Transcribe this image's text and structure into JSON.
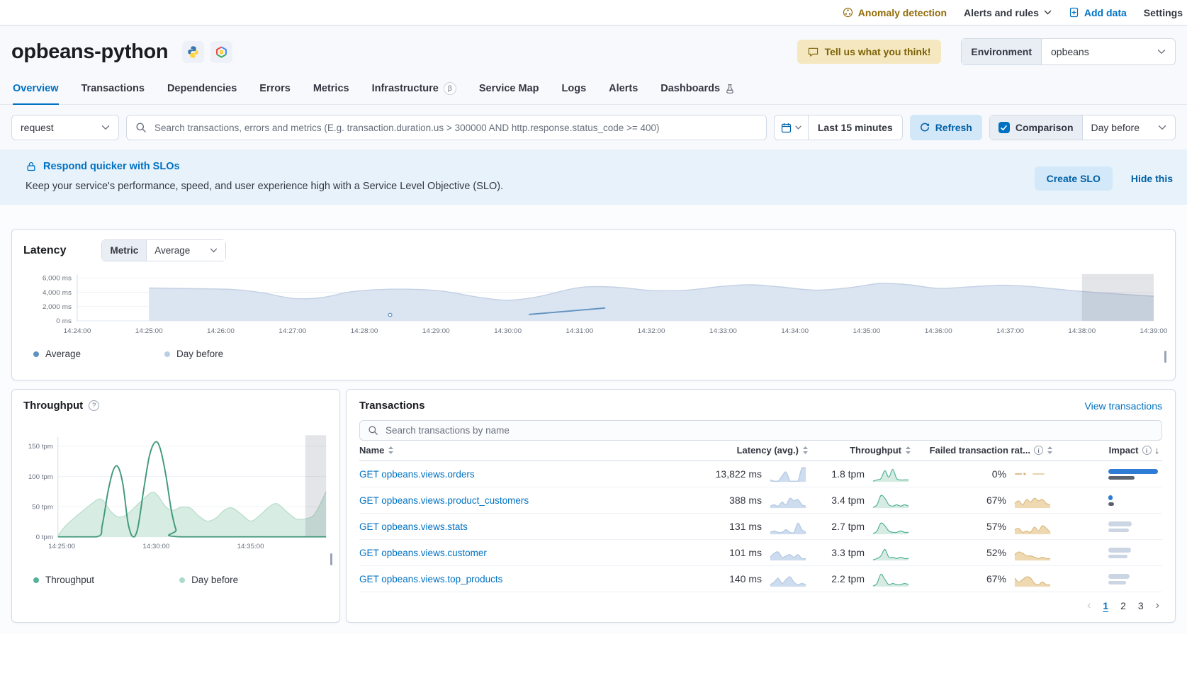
{
  "topbar": {
    "anomaly_detection": "Anomaly detection",
    "alerts_and_rules": "Alerts and rules",
    "add_data": "Add data",
    "settings": "Settings"
  },
  "header": {
    "service_name": "opbeans-python",
    "feedback_button": "Tell us what you think!",
    "environment_label": "Environment",
    "environment_value": "opbeans",
    "agent_icons": [
      "python",
      "google-cloud"
    ]
  },
  "tabs": [
    {
      "label": "Overview",
      "active": true
    },
    {
      "label": "Transactions"
    },
    {
      "label": "Dependencies"
    },
    {
      "label": "Errors"
    },
    {
      "label": "Metrics"
    },
    {
      "label": "Infrastructure",
      "badge": "β"
    },
    {
      "label": "Service Map"
    },
    {
      "label": "Logs"
    },
    {
      "label": "Alerts"
    },
    {
      "label": "Dashboards",
      "icon": "beaker"
    }
  ],
  "searchbar": {
    "transaction_type": "request",
    "search_placeholder": "Search transactions, errors and metrics (E.g. transaction.duration.us > 300000 AND http.response.status_code >= 400)",
    "time_range": "Last 15 minutes",
    "refresh_label": "Refresh",
    "comparison_label": "Comparison",
    "comparison_checked": true,
    "comparison_value": "Day before"
  },
  "slo_banner": {
    "title": "Respond quicker with SLOs",
    "description": "Keep your service's performance, speed, and user experience high with a Service Level Objective (SLO).",
    "create_button": "Create SLO",
    "hide_link": "Hide this"
  },
  "latency_panel": {
    "title": "Latency",
    "metric_label": "Metric",
    "metric_value": "Average",
    "legend": [
      {
        "label": "Average",
        "color": "#6092c0"
      },
      {
        "label": "Day before",
        "color": "#b9cfe8"
      }
    ]
  },
  "throughput_panel": {
    "title": "Throughput",
    "legend": [
      {
        "label": "Throughput",
        "color": "#54b399"
      },
      {
        "label": "Day before",
        "color": "#aadbc8"
      }
    ]
  },
  "transactions_panel": {
    "title": "Transactions",
    "view_link": "View transactions",
    "search_placeholder": "Search transactions by name",
    "columns": [
      "Name",
      "Latency (avg.)",
      "Throughput",
      "Failed transaction rat...",
      "Impact"
    ],
    "rows": [
      {
        "name": "GET opbeans.views.orders",
        "latency": "13,822 ms",
        "latency_spark": [
          1,
          0,
          0,
          4,
          7,
          0,
          0,
          0,
          10,
          10
        ],
        "throughput": "1.8 tpm",
        "throughput_spark": [
          0,
          1,
          2,
          8,
          3,
          9,
          2,
          1,
          1,
          1
        ],
        "failed_rate": "0%",
        "failed_spark": [
          0,
          0,
          0,
          0,
          0,
          0,
          0,
          0,
          0,
          0
        ],
        "impact": [
          {
            "w": 97,
            "color": "#2f7cd6"
          },
          {
            "w": 52,
            "color": "#5a626e"
          }
        ]
      },
      {
        "name": "GET opbeans.views.product_customers",
        "latency": "388 ms",
        "latency_spark": [
          1,
          2,
          1,
          4,
          2,
          7,
          5,
          6,
          2,
          1
        ],
        "throughput": "3.4 tpm",
        "throughput_spark": [
          0,
          2,
          9,
          7,
          2,
          1,
          2,
          1,
          2,
          1
        ],
        "failed_rate": "67%",
        "failed_spark": [
          3,
          5,
          2,
          6,
          4,
          7,
          5,
          6,
          3,
          2
        ],
        "impact": [
          {
            "w": 8,
            "color": "#2f7cd6"
          },
          {
            "w": 11,
            "color": "#5a626e"
          }
        ]
      },
      {
        "name": "GET opbeans.views.stats",
        "latency": "131 ms",
        "latency_spark": [
          1,
          2,
          1,
          1,
          3,
          1,
          1,
          8,
          3,
          1
        ],
        "throughput": "2.7 tpm",
        "throughput_spark": [
          0,
          2,
          8,
          6,
          2,
          1,
          1,
          2,
          1,
          1
        ],
        "failed_rate": "57%",
        "failed_spark": [
          3,
          4,
          1,
          2,
          1,
          5,
          2,
          6,
          4,
          1
        ],
        "impact": [
          {
            "w": 46,
            "color": "#cbd5e3"
          },
          {
            "w": 40,
            "color": "#cbd5e3"
          }
        ]
      },
      {
        "name": "GET opbeans.views.customer",
        "latency": "101 ms",
        "latency_spark": [
          2,
          5,
          6,
          2,
          3,
          4,
          2,
          4,
          1,
          1
        ],
        "throughput": "3.3 tpm",
        "throughput_spark": [
          0,
          1,
          3,
          8,
          2,
          2,
          1,
          2,
          1,
          1
        ],
        "failed_rate": "52%",
        "failed_spark": [
          4,
          6,
          5,
          3,
          3,
          2,
          1,
          2,
          1,
          1
        ],
        "impact": [
          {
            "w": 45,
            "color": "#cbd5e3"
          },
          {
            "w": 38,
            "color": "#cbd5e3"
          }
        ]
      },
      {
        "name": "GET opbeans.views.top_products",
        "latency": "140 ms",
        "latency_spark": [
          1,
          3,
          6,
          2,
          5,
          7,
          3,
          1,
          2,
          1
        ],
        "throughput": "2.2 tpm",
        "throughput_spark": [
          0,
          2,
          9,
          5,
          1,
          2,
          1,
          1,
          2,
          1
        ],
        "failed_rate": "67%",
        "failed_spark": [
          6,
          3,
          5,
          7,
          6,
          2,
          1,
          3,
          1,
          1
        ],
        "impact": [
          {
            "w": 42,
            "color": "#cbd5e3"
          },
          {
            "w": 35,
            "color": "#cbd5e3"
          }
        ]
      }
    ],
    "pagination": {
      "prev": "‹",
      "pages": [
        "1",
        "2",
        "3"
      ],
      "active_page": "1",
      "next": "›"
    }
  },
  "chart_data": [
    {
      "type": "area",
      "title": "Latency",
      "unit": "ms",
      "ylim": [
        0,
        6000
      ],
      "y_grid": [
        0,
        2000,
        4000,
        6000
      ],
      "y_tick_labels": [
        "0 ms",
        "2,000 ms",
        "4,000 ms",
        "6,000 ms"
      ],
      "x_tick_labels": [
        "14:24:00",
        "14:25:00",
        "14:26:00",
        "14:27:00",
        "14:28:00",
        "14:29:00",
        "14:30:00",
        "14:31:00",
        "14:32:00",
        "14:33:00",
        "14:34:00",
        "14:35:00",
        "14:36:00",
        "14:37:00",
        "14:38:00",
        "14:39:00"
      ],
      "x_domain_minutes": [
        0,
        15
      ],
      "annotation_region_minutes": [
        14,
        15
      ],
      "series": [
        {
          "name": "Average",
          "type": "line",
          "color": "#6092c0",
          "points": [
            [
              6.3,
              900
            ],
            [
              7.35,
              1800
            ]
          ],
          "marker_point": [
            4.36,
            840
          ]
        },
        {
          "name": "Day before",
          "type": "area",
          "fill": "#dbe4f1",
          "stroke": "#c3d1e4",
          "points": [
            [
              1,
              4600
            ],
            [
              1.6,
              4520
            ],
            [
              2.2,
              4380
            ],
            [
              2.6,
              3900
            ],
            [
              3,
              3150
            ],
            [
              3.4,
              3250
            ],
            [
              3.8,
              4050
            ],
            [
              4.2,
              4380
            ],
            [
              4.7,
              4420
            ],
            [
              5.1,
              4150
            ],
            [
              5.6,
              3300
            ],
            [
              6,
              2900
            ],
            [
              6.4,
              3350
            ],
            [
              6.9,
              4500
            ],
            [
              7.2,
              4800
            ],
            [
              7.6,
              4650
            ],
            [
              8,
              4250
            ],
            [
              8.5,
              4300
            ],
            [
              9,
              4850
            ],
            [
              9.4,
              5050
            ],
            [
              9.8,
              4750
            ],
            [
              10.3,
              4300
            ],
            [
              10.8,
              4700
            ],
            [
              11.2,
              5250
            ],
            [
              11.6,
              5050
            ],
            [
              12,
              4550
            ],
            [
              12.5,
              4800
            ],
            [
              12.9,
              5000
            ],
            [
              13.3,
              4800
            ],
            [
              13.8,
              4300
            ],
            [
              14.3,
              3900
            ],
            [
              15,
              3450
            ]
          ]
        }
      ]
    },
    {
      "type": "area",
      "title": "Throughput",
      "unit": "tpm",
      "ylim": [
        0,
        160
      ],
      "y_grid": [
        0,
        50,
        100,
        150
      ],
      "y_tick_labels": [
        "0 tpm",
        "50 tpm",
        "100 tpm",
        "150 tpm"
      ],
      "x_ticks": [
        {
          "minute": 1,
          "label": "14:25:00"
        },
        {
          "minute": 6,
          "label": "14:30:00"
        },
        {
          "minute": 11,
          "label": "14:35:00"
        }
      ],
      "x_domain_minutes": [
        0.8,
        15
      ],
      "annotation_region_minutes": [
        13.9,
        15
      ],
      "series": [
        {
          "name": "Throughput",
          "type": "line",
          "color": "#42997e",
          "points": [
            [
              0.8,
              0
            ],
            [
              2.85,
              0
            ],
            [
              3.15,
              20
            ],
            [
              3.45,
              75
            ],
            [
              3.75,
              112
            ],
            [
              4.0,
              115
            ],
            [
              4.25,
              85
            ],
            [
              4.5,
              25
            ],
            [
              4.7,
              2
            ],
            [
              4.85,
              0
            ],
            [
              5.05,
              18
            ],
            [
              5.35,
              80
            ],
            [
              5.65,
              135
            ],
            [
              5.95,
              157
            ],
            [
              6.2,
              148
            ],
            [
              6.5,
              105
            ],
            [
              6.8,
              45
            ],
            [
              7.05,
              12
            ],
            [
              7.3,
              0
            ],
            [
              15,
              0
            ]
          ]
        },
        {
          "name": "Day before",
          "type": "area",
          "fill": "#d7ece2",
          "stroke": "#b6ddcb",
          "points": [
            [
              0.8,
              2
            ],
            [
              1.2,
              18
            ],
            [
              1.8,
              35
            ],
            [
              2.4,
              50
            ],
            [
              2.9,
              62
            ],
            [
              3.2,
              60
            ],
            [
              3.6,
              42
            ],
            [
              4,
              33
            ],
            [
              4.4,
              36
            ],
            [
              4.9,
              50
            ],
            [
              5.4,
              65
            ],
            [
              5.8,
              74
            ],
            [
              6.1,
              68
            ],
            [
              6.5,
              50
            ],
            [
              6.9,
              44
            ],
            [
              7.3,
              49
            ],
            [
              7.8,
              48
            ],
            [
              8.2,
              36
            ],
            [
              8.7,
              26
            ],
            [
              9.2,
              32
            ],
            [
              9.6,
              44
            ],
            [
              10,
              48
            ],
            [
              10.5,
              38
            ],
            [
              11,
              26
            ],
            [
              11.5,
              36
            ],
            [
              12,
              50
            ],
            [
              12.4,
              55
            ],
            [
              12.9,
              42
            ],
            [
              13.4,
              30
            ],
            [
              13.9,
              30
            ],
            [
              14.4,
              38
            ],
            [
              15,
              75
            ]
          ]
        }
      ]
    }
  ]
}
